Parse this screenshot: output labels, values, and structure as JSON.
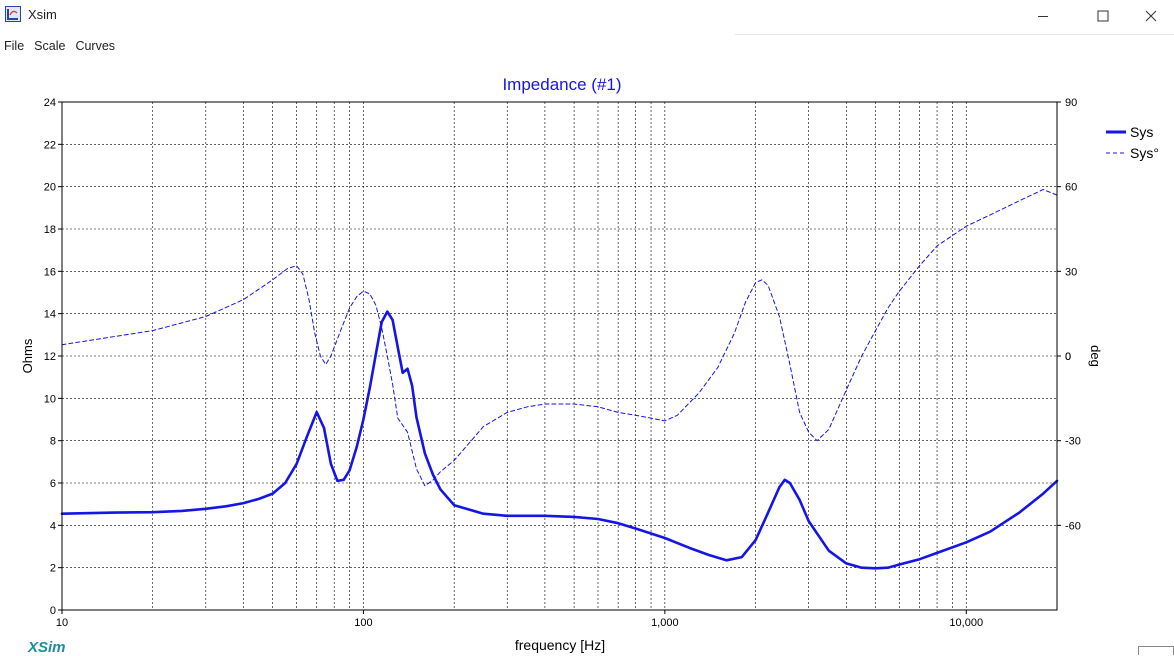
{
  "window": {
    "title": "Xsim",
    "icon": "xsim-app-icon",
    "controls": [
      "minimize-icon",
      "maximize-icon",
      "close-icon"
    ]
  },
  "menu": [
    {
      "label": "File"
    },
    {
      "label": "Scale"
    },
    {
      "label": "Curves"
    }
  ],
  "brand": "XSim",
  "chart_data": {
    "type": "line",
    "title": "Impedance (#1)",
    "xlabel": "frequency [Hz]",
    "ylabel": "Ohms",
    "y2label": "deg",
    "x_scale": "log",
    "xlim": [
      10,
      20000
    ],
    "ylim": [
      0,
      24
    ],
    "y2lim": [
      -90,
      90
    ],
    "x_tick_labels": [
      {
        "value": 10,
        "label": "10"
      },
      {
        "value": 100,
        "label": "100"
      },
      {
        "value": 1000,
        "label": "1,000"
      },
      {
        "value": 10000,
        "label": "10,000"
      }
    ],
    "y_ticks": [
      0,
      2,
      4,
      6,
      8,
      10,
      12,
      14,
      16,
      18,
      20,
      22,
      24
    ],
    "y2_ticks": [
      -60,
      -30,
      0,
      30,
      60,
      90
    ],
    "grid": true,
    "legend": "right",
    "colors": {
      "series": "#1515e6",
      "title": "#1515e6"
    },
    "series": [
      {
        "name": "Sys",
        "axis": "left",
        "style": "solid",
        "points": [
          [
            10,
            4.55
          ],
          [
            15,
            4.6
          ],
          [
            20,
            4.62
          ],
          [
            25,
            4.68
          ],
          [
            30,
            4.78
          ],
          [
            35,
            4.9
          ],
          [
            40,
            5.05
          ],
          [
            45,
            5.25
          ],
          [
            50,
            5.5
          ],
          [
            55,
            6.0
          ],
          [
            60,
            6.9
          ],
          [
            65,
            8.2
          ],
          [
            70,
            9.35
          ],
          [
            74,
            8.6
          ],
          [
            78,
            6.9
          ],
          [
            82,
            6.1
          ],
          [
            86,
            6.15
          ],
          [
            90,
            6.6
          ],
          [
            95,
            7.7
          ],
          [
            100,
            9.0
          ],
          [
            105,
            10.5
          ],
          [
            110,
            12.1
          ],
          [
            115,
            13.6
          ],
          [
            120,
            14.1
          ],
          [
            125,
            13.7
          ],
          [
            130,
            12.4
          ],
          [
            135,
            11.2
          ],
          [
            140,
            11.4
          ],
          [
            145,
            10.6
          ],
          [
            150,
            9.1
          ],
          [
            160,
            7.4
          ],
          [
            170,
            6.4
          ],
          [
            180,
            5.7
          ],
          [
            200,
            4.95
          ],
          [
            250,
            4.55
          ],
          [
            300,
            4.45
          ],
          [
            400,
            4.45
          ],
          [
            500,
            4.4
          ],
          [
            600,
            4.3
          ],
          [
            700,
            4.1
          ],
          [
            800,
            3.85
          ],
          [
            1000,
            3.4
          ],
          [
            1200,
            2.95
          ],
          [
            1400,
            2.6
          ],
          [
            1600,
            2.35
          ],
          [
            1800,
            2.5
          ],
          [
            2000,
            3.3
          ],
          [
            2200,
            4.6
          ],
          [
            2400,
            5.8
          ],
          [
            2500,
            6.15
          ],
          [
            2600,
            6.0
          ],
          [
            2800,
            5.2
          ],
          [
            3000,
            4.2
          ],
          [
            3500,
            2.8
          ],
          [
            4000,
            2.2
          ],
          [
            4500,
            2.0
          ],
          [
            5000,
            1.97
          ],
          [
            5500,
            2.0
          ],
          [
            6000,
            2.15
          ],
          [
            7000,
            2.4
          ],
          [
            8000,
            2.7
          ],
          [
            10000,
            3.2
          ],
          [
            12000,
            3.7
          ],
          [
            15000,
            4.6
          ],
          [
            18000,
            5.5
          ],
          [
            20000,
            6.1
          ]
        ]
      },
      {
        "name": "Sys°",
        "axis": "right",
        "style": "dashed",
        "points": [
          [
            10,
            4
          ],
          [
            20,
            9
          ],
          [
            30,
            14
          ],
          [
            40,
            20
          ],
          [
            50,
            27
          ],
          [
            56,
            31
          ],
          [
            60,
            32
          ],
          [
            63,
            29
          ],
          [
            66,
            20
          ],
          [
            69,
            8
          ],
          [
            72,
            0
          ],
          [
            75,
            -3
          ],
          [
            78,
            0
          ],
          [
            84,
            9
          ],
          [
            90,
            17
          ],
          [
            95,
            21
          ],
          [
            100,
            23
          ],
          [
            105,
            22
          ],
          [
            110,
            18
          ],
          [
            115,
            10
          ],
          [
            120,
            0
          ],
          [
            125,
            -10
          ],
          [
            130,
            -22
          ],
          [
            140,
            -27
          ],
          [
            150,
            -40
          ],
          [
            160,
            -46
          ],
          [
            170,
            -44
          ],
          [
            180,
            -41
          ],
          [
            200,
            -37
          ],
          [
            250,
            -25
          ],
          [
            300,
            -20
          ],
          [
            350,
            -18
          ],
          [
            400,
            -17
          ],
          [
            500,
            -17
          ],
          [
            600,
            -18
          ],
          [
            700,
            -20
          ],
          [
            800,
            -21
          ],
          [
            900,
            -22
          ],
          [
            1000,
            -23
          ],
          [
            1100,
            -21
          ],
          [
            1300,
            -13
          ],
          [
            1500,
            -4
          ],
          [
            1700,
            8
          ],
          [
            1850,
            19
          ],
          [
            2000,
            26
          ],
          [
            2100,
            27
          ],
          [
            2200,
            25
          ],
          [
            2400,
            14
          ],
          [
            2600,
            -3
          ],
          [
            2800,
            -20
          ],
          [
            3000,
            -27
          ],
          [
            3200,
            -30
          ],
          [
            3500,
            -26
          ],
          [
            4000,
            -12
          ],
          [
            4500,
            0
          ],
          [
            5000,
            9
          ],
          [
            5500,
            17
          ],
          [
            6000,
            23
          ],
          [
            7000,
            32
          ],
          [
            8000,
            39
          ],
          [
            10000,
            46
          ],
          [
            12000,
            50
          ],
          [
            15000,
            55
          ],
          [
            18000,
            59
          ],
          [
            20000,
            57
          ]
        ]
      }
    ]
  }
}
